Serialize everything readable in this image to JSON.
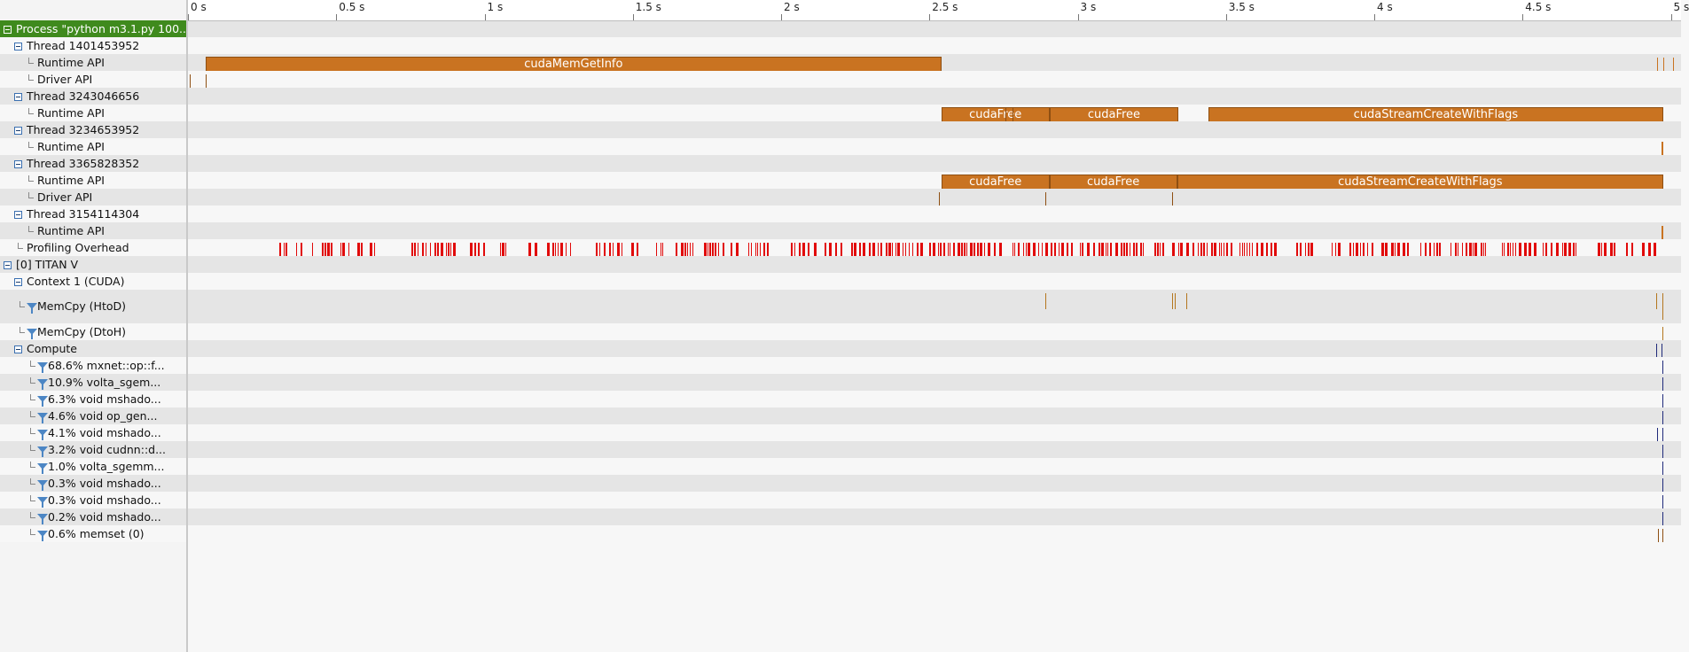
{
  "colors": {
    "api_bar": "#c97321",
    "overhead": "#e10a0a",
    "selection": "#3f8a1d",
    "memcpy_mark": "#b4761e",
    "kernel_mark": "#1f2a7a"
  },
  "ruler": {
    "ticks": [
      "0 s",
      "0.5 s",
      "1 s",
      "1.5 s",
      "2 s",
      "2.5 s",
      "3 s",
      "3.5 s",
      "4 s",
      "4.5 s",
      "5 s"
    ]
  },
  "tree": [
    {
      "label": "Process \"python m3.1.py 100...",
      "icon": "collapse-box-icon",
      "selected": true
    },
    {
      "label": "Thread 1401453952",
      "icon": "collapse-box-icon"
    },
    {
      "label": "Runtime API",
      "icon": "tree-branch-icon"
    },
    {
      "label": "Driver API",
      "icon": "tree-branch-icon"
    },
    {
      "label": "Thread 3243046656",
      "icon": "collapse-box-icon"
    },
    {
      "label": "Runtime API",
      "icon": "tree-branch-icon"
    },
    {
      "label": "Thread 3234653952",
      "icon": "collapse-box-icon"
    },
    {
      "label": "Runtime API",
      "icon": "tree-branch-icon"
    },
    {
      "label": "Thread 3365828352",
      "icon": "collapse-box-icon"
    },
    {
      "label": "Runtime API",
      "icon": "tree-branch-icon"
    },
    {
      "label": "Driver API",
      "icon": "tree-branch-icon"
    },
    {
      "label": "Thread 3154114304",
      "icon": "collapse-box-icon"
    },
    {
      "label": "Runtime API",
      "icon": "tree-branch-icon"
    },
    {
      "label": "Profiling Overhead",
      "icon": "tree-branch-icon"
    },
    {
      "label": "[0] TITAN V",
      "icon": "collapse-box-icon"
    },
    {
      "label": "Context 1 (CUDA)",
      "icon": "collapse-box-icon"
    },
    {
      "label": "MemCpy (HtoD)",
      "icon": "filter-icon"
    },
    {
      "label": "MemCpy (DtoH)",
      "icon": "filter-icon"
    },
    {
      "label": "Compute",
      "icon": "collapse-box-icon"
    },
    {
      "label": "68.6% mxnet::op::f...",
      "icon": "filter-icon"
    },
    {
      "label": "10.9% volta_sgem...",
      "icon": "filter-icon"
    },
    {
      "label": "6.3% void mshado...",
      "icon": "filter-icon"
    },
    {
      "label": "4.6% void op_gen...",
      "icon": "filter-icon"
    },
    {
      "label": "4.1% void mshado...",
      "icon": "filter-icon"
    },
    {
      "label": "3.2% void cudnn::d...",
      "icon": "filter-icon"
    },
    {
      "label": "1.0% volta_sgemm...",
      "icon": "filter-icon"
    },
    {
      "label": "0.3% void mshado...",
      "icon": "filter-icon"
    },
    {
      "label": "0.3% void mshado...",
      "icon": "filter-icon"
    },
    {
      "label": "0.2% void mshado...",
      "icon": "filter-icon"
    },
    {
      "label": "0.6% memset (0)",
      "icon": "filter-icon"
    }
  ],
  "api_bars": [
    {
      "row": 2,
      "label": "cudaMemGetInfo",
      "start": 0.06,
      "end": 2.54
    },
    {
      "row": 5,
      "label": "cudaFree",
      "start": 2.54,
      "end": 2.905
    },
    {
      "row": 5,
      "label": "cudaFree",
      "start": 2.905,
      "end": 3.34
    },
    {
      "row": 5,
      "label": "cudaStreamCreateWithFlags",
      "start": 3.44,
      "end": 4.975
    },
    {
      "row": 9,
      "label": "cudaFree",
      "start": 2.54,
      "end": 2.905
    },
    {
      "row": 9,
      "label": "cudaFree",
      "start": 2.905,
      "end": 3.335
    },
    {
      "row": 9,
      "label": "cudaStreamCreateWithFlags",
      "start": 3.335,
      "end": 4.975
    }
  ]
}
